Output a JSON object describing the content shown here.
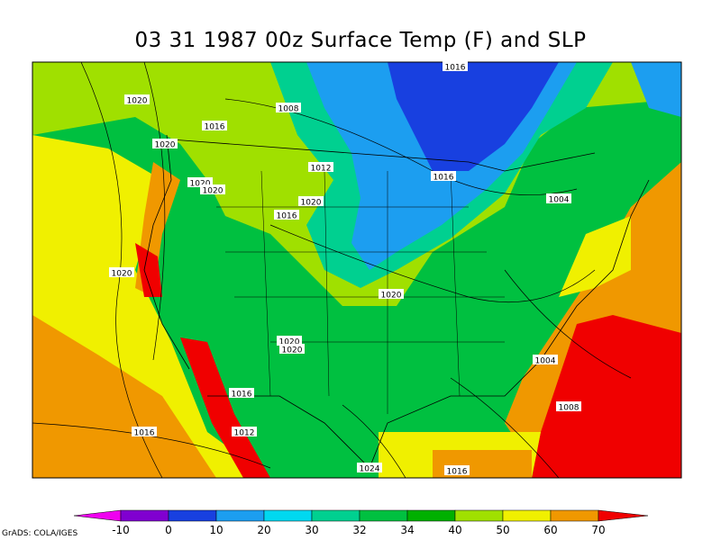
{
  "title": "03 31 1987 00z Surface Temp (F) and SLP",
  "credit": "GrADS: COLA/IGES",
  "legend": {
    "ticks": [
      "-10",
      "0",
      "10",
      "20",
      "30",
      "32",
      "34",
      "40",
      "50",
      "60",
      "70"
    ],
    "colors": [
      "#f000f0",
      "#8000d0",
      "#1840e0",
      "#1c9ef0",
      "#00d8f0",
      "#00d090",
      "#00c040",
      "#00b000",
      "#a0e000",
      "#f0f000",
      "#f09800",
      "#f00000"
    ]
  },
  "isobars": [
    {
      "label": "1016"
    },
    {
      "label": "1020"
    },
    {
      "label": "1016"
    },
    {
      "label": "1008"
    },
    {
      "label": "1020"
    },
    {
      "label": "1020"
    },
    {
      "label": "1020"
    },
    {
      "label": "1012"
    },
    {
      "label": "1016"
    },
    {
      "label": "1020"
    },
    {
      "label": "1016"
    },
    {
      "label": "1004"
    },
    {
      "label": "1020"
    },
    {
      "label": "1020"
    },
    {
      "label": "1020"
    },
    {
      "label": "1020"
    },
    {
      "label": "1004"
    },
    {
      "label": "1016"
    },
    {
      "label": "1008"
    },
    {
      "label": "1016"
    },
    {
      "label": "1012"
    },
    {
      "label": "1024"
    },
    {
      "label": "1016"
    }
  ]
}
